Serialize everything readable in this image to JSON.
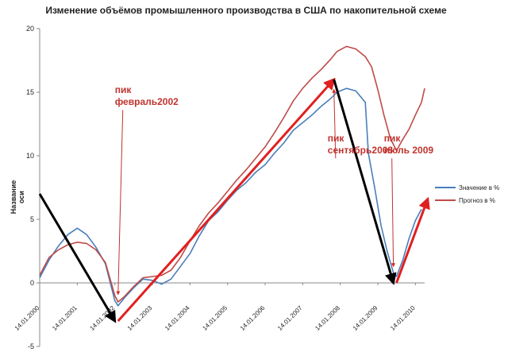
{
  "chart_data": {
    "type": "line",
    "title": "Изменение объёмов промышленного производства в США по накопительной схеме",
    "ylabel": "Название оси",
    "ylim": [
      -5,
      20
    ],
    "yticks": [
      "-5",
      "0",
      "5",
      "10",
      "15",
      "20"
    ],
    "xlim": [
      "2000-01-14",
      "2010-04-14"
    ],
    "xticks": [
      "14.01.2000",
      "14.01.2001",
      "14.01.2002",
      "14.01.2003",
      "14.01.2004",
      "14.01.2005",
      "14.01.2006",
      "14.01.2007",
      "14.01.2008",
      "14.01.2009",
      "14.01.2010"
    ],
    "grid": false,
    "legend_position": "right",
    "series": [
      {
        "name": "Значение в %",
        "color": "#4a7ebb",
        "points": [
          [
            "2000-01-14",
            0.4
          ],
          [
            "2000-04-14",
            1.8
          ],
          [
            "2000-07-14",
            2.9
          ],
          [
            "2000-10-14",
            3.8
          ],
          [
            "2001-01-14",
            4.3
          ],
          [
            "2001-04-14",
            3.8
          ],
          [
            "2001-07-14",
            2.8
          ],
          [
            "2001-10-14",
            1.5
          ],
          [
            "2002-01-14",
            -1.4
          ],
          [
            "2002-02-14",
            -1.8
          ],
          [
            "2002-04-14",
            -1.2
          ],
          [
            "2002-07-14",
            -0.4
          ],
          [
            "2002-10-14",
            0.3
          ],
          [
            "2003-01-14",
            0.2
          ],
          [
            "2003-04-14",
            -0.1
          ],
          [
            "2003-07-14",
            0.3
          ],
          [
            "2003-10-14",
            1.3
          ],
          [
            "2004-01-14",
            2.3
          ],
          [
            "2004-04-14",
            3.7
          ],
          [
            "2004-07-14",
            4.9
          ],
          [
            "2004-10-14",
            5.6
          ],
          [
            "2005-01-14",
            6.5
          ],
          [
            "2005-04-14",
            7.3
          ],
          [
            "2005-07-14",
            7.9
          ],
          [
            "2005-10-14",
            8.7
          ],
          [
            "2006-01-14",
            9.3
          ],
          [
            "2006-04-14",
            10.2
          ],
          [
            "2006-07-14",
            11.0
          ],
          [
            "2006-10-14",
            12.0
          ],
          [
            "2007-01-14",
            12.6
          ],
          [
            "2007-04-14",
            13.2
          ],
          [
            "2007-07-14",
            13.9
          ],
          [
            "2007-10-14",
            14.5
          ],
          [
            "2007-12-14",
            15.0
          ],
          [
            "2008-03-14",
            15.3
          ],
          [
            "2008-06-14",
            15.1
          ],
          [
            "2008-09-14",
            14.2
          ],
          [
            "2008-10-14",
            10.2
          ],
          [
            "2008-12-14",
            7.5
          ],
          [
            "2009-02-14",
            4.5
          ],
          [
            "2009-04-14",
            2.5
          ],
          [
            "2009-06-14",
            0.8
          ],
          [
            "2009-07-14",
            0.5
          ],
          [
            "2009-09-14",
            1.8
          ],
          [
            "2009-11-14",
            3.5
          ],
          [
            "2010-01-14",
            4.9
          ],
          [
            "2010-03-14",
            5.8
          ]
        ]
      },
      {
        "name": "Прогноз в %",
        "color": "#be4b48",
        "points": [
          [
            "2000-01-14",
            0.6
          ],
          [
            "2000-04-14",
            2.0
          ],
          [
            "2000-07-14",
            2.6
          ],
          [
            "2000-10-14",
            3.0
          ],
          [
            "2001-01-14",
            3.2
          ],
          [
            "2001-04-14",
            3.1
          ],
          [
            "2001-07-14",
            2.6
          ],
          [
            "2001-10-14",
            1.6
          ],
          [
            "2002-01-14",
            -1.0
          ],
          [
            "2002-02-14",
            -1.5
          ],
          [
            "2002-04-14",
            -1.1
          ],
          [
            "2002-07-14",
            -0.3
          ],
          [
            "2002-10-14",
            0.4
          ],
          [
            "2003-01-14",
            0.5
          ],
          [
            "2003-04-14",
            0.6
          ],
          [
            "2003-07-14",
            1.0
          ],
          [
            "2003-10-14",
            2.0
          ],
          [
            "2004-01-14",
            3.3
          ],
          [
            "2004-04-14",
            4.5
          ],
          [
            "2004-07-14",
            5.5
          ],
          [
            "2004-10-14",
            6.3
          ],
          [
            "2005-01-14",
            7.2
          ],
          [
            "2005-04-14",
            8.1
          ],
          [
            "2005-07-14",
            8.9
          ],
          [
            "2005-10-14",
            9.8
          ],
          [
            "2006-01-14",
            10.7
          ],
          [
            "2006-04-14",
            11.8
          ],
          [
            "2006-07-14",
            13.0
          ],
          [
            "2006-10-14",
            14.3
          ],
          [
            "2007-01-14",
            15.3
          ],
          [
            "2007-04-14",
            16.1
          ],
          [
            "2007-07-14",
            16.8
          ],
          [
            "2007-10-14",
            17.6
          ],
          [
            "2007-12-14",
            18.2
          ],
          [
            "2008-03-14",
            18.6
          ],
          [
            "2008-06-14",
            18.4
          ],
          [
            "2008-09-14",
            17.8
          ],
          [
            "2008-11-14",
            17.0
          ],
          [
            "2009-01-14",
            15.2
          ],
          [
            "2009-03-14",
            13.2
          ],
          [
            "2009-05-14",
            11.4
          ],
          [
            "2009-07-14",
            10.4
          ],
          [
            "2009-09-14",
            11.3
          ],
          [
            "2009-11-14",
            12.1
          ],
          [
            "2010-01-14",
            13.2
          ],
          [
            "2010-03-14",
            14.2
          ],
          [
            "2010-04-14",
            15.3
          ]
        ]
      }
    ],
    "arrows": [
      {
        "color": "#000000",
        "from": [
          "2000-01-14",
          7.0
        ],
        "to": [
          "2002-01-14",
          -3.0
        ]
      },
      {
        "color": "#e02020",
        "from": [
          "2002-02-14",
          -3.0
        ],
        "to": [
          "2007-11-14",
          16.0
        ]
      },
      {
        "color": "#000000",
        "from": [
          "2007-11-14",
          16.0
        ],
        "to": [
          "2009-06-14",
          0.0
        ]
      },
      {
        "color": "#e02020",
        "from": [
          "2009-07-14",
          0.0
        ],
        "to": [
          "2010-05-14",
          6.6
        ]
      }
    ],
    "annotations": [
      {
        "lines": [
          "пик",
          "февраль2002"
        ],
        "anchor": [
          "2002-01-14",
          15.6
        ],
        "pointer_to": [
          "2002-02-14",
          -0.9
        ]
      },
      {
        "lines": [
          "пик",
          "сентябрь2008"
        ],
        "anchor": [
          "2007-09-14",
          11.8
        ],
        "pointer_to": [
          "2007-11-14",
          15.2
        ]
      },
      {
        "lines": [
          "пик",
          "июль 2009"
        ],
        "anchor": [
          "2009-03-14",
          11.8
        ],
        "pointer_to": [
          "2009-06-14",
          1.3
        ]
      }
    ]
  }
}
